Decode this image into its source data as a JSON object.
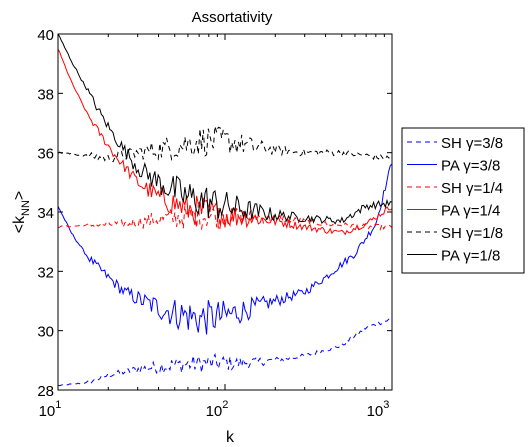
{
  "chart_data": {
    "type": "line",
    "title": "Assortativity",
    "xlabel": "k",
    "ylabel": "<k",
    "ylabel_sub": "NN",
    "ylabel_close": ">",
    "x_scale": "log",
    "xlim": [
      10,
      1000
    ],
    "ylim": [
      28,
      40
    ],
    "x_ticks": [
      {
        "value": 10,
        "base": "10",
        "exp": "1"
      },
      {
        "value": 100,
        "base": "10",
        "exp": "2"
      },
      {
        "value": 1000,
        "base": "10",
        "exp": "3"
      }
    ],
    "y_ticks": [
      28,
      30,
      32,
      34,
      36,
      38,
      40
    ],
    "grid": false,
    "legend_position": "right",
    "series": [
      {
        "name": "SH γ=3/8",
        "color": "#0000ff",
        "style": "dashed",
        "anchors": [
          [
            10,
            28.15
          ],
          [
            15,
            28.25
          ],
          [
            20,
            28.5
          ],
          [
            30,
            28.7
          ],
          [
            50,
            28.85
          ],
          [
            80,
            28.9
          ],
          [
            120,
            28.9
          ],
          [
            200,
            29.0
          ],
          [
            300,
            29.15
          ],
          [
            500,
            29.5
          ],
          [
            700,
            30.1
          ],
          [
            1000,
            30.4
          ]
        ],
        "noise": 0.18
      },
      {
        "name": "PA γ=3/8",
        "color": "#0000ff",
        "style": "solid",
        "anchors": [
          [
            10,
            34.2
          ],
          [
            12,
            33.3
          ],
          [
            15,
            32.5
          ],
          [
            20,
            31.8
          ],
          [
            25,
            31.3
          ],
          [
            35,
            30.9
          ],
          [
            50,
            30.6
          ],
          [
            70,
            30.4
          ],
          [
            100,
            30.5
          ],
          [
            150,
            30.8
          ],
          [
            200,
            31.0
          ],
          [
            300,
            31.3
          ],
          [
            400,
            31.8
          ],
          [
            600,
            32.6
          ],
          [
            800,
            33.6
          ],
          [
            1000,
            35.7
          ]
        ],
        "noise": 0.35
      },
      {
        "name": "SH γ=1/4",
        "color": "#ff0000",
        "style": "dashed",
        "anchors": [
          [
            10,
            33.5
          ],
          [
            15,
            33.55
          ],
          [
            25,
            33.6
          ],
          [
            40,
            33.75
          ],
          [
            60,
            33.85
          ],
          [
            100,
            33.9
          ],
          [
            200,
            33.8
          ],
          [
            400,
            33.6
          ],
          [
            700,
            33.5
          ],
          [
            1000,
            33.5
          ]
        ],
        "noise": 0.25
      },
      {
        "name": "PA γ=1/4",
        "color": "#ff0000",
        "style": "solid",
        "anchors": [
          [
            10,
            39.5
          ],
          [
            12,
            38.4
          ],
          [
            15,
            37.3
          ],
          [
            18,
            36.6
          ],
          [
            22,
            35.9
          ],
          [
            30,
            35.0
          ],
          [
            40,
            34.5
          ],
          [
            60,
            34.1
          ],
          [
            100,
            33.9
          ],
          [
            200,
            33.7
          ],
          [
            300,
            33.5
          ],
          [
            500,
            33.3
          ],
          [
            700,
            33.6
          ],
          [
            1000,
            34.2
          ]
        ],
        "noise": 0.3
      },
      {
        "name": "SH γ=1/8",
        "color": "#000000",
        "style": "dashed",
        "anchors": [
          [
            10,
            36.0
          ],
          [
            15,
            35.9
          ],
          [
            20,
            35.8
          ],
          [
            30,
            36.0
          ],
          [
            50,
            36.2
          ],
          [
            70,
            36.4
          ],
          [
            100,
            36.4
          ],
          [
            150,
            36.2
          ],
          [
            200,
            36.1
          ],
          [
            300,
            36.0
          ],
          [
            500,
            36.0
          ],
          [
            700,
            35.9
          ],
          [
            1000,
            35.8
          ]
        ],
        "noise": 0.3
      },
      {
        "name": "PA γ=1/8",
        "color": "#000000",
        "style": "solid",
        "anchors": [
          [
            10,
            40.0
          ],
          [
            12,
            39.1
          ],
          [
            15,
            38.1
          ],
          [
            18,
            37.3
          ],
          [
            22,
            36.5
          ],
          [
            30,
            35.5
          ],
          [
            40,
            35.0
          ],
          [
            60,
            34.5
          ],
          [
            100,
            34.2
          ],
          [
            200,
            33.9
          ],
          [
            300,
            33.8
          ],
          [
            500,
            33.7
          ],
          [
            700,
            34.2
          ],
          [
            1000,
            34.3
          ]
        ],
        "noise": 0.35
      }
    ]
  }
}
